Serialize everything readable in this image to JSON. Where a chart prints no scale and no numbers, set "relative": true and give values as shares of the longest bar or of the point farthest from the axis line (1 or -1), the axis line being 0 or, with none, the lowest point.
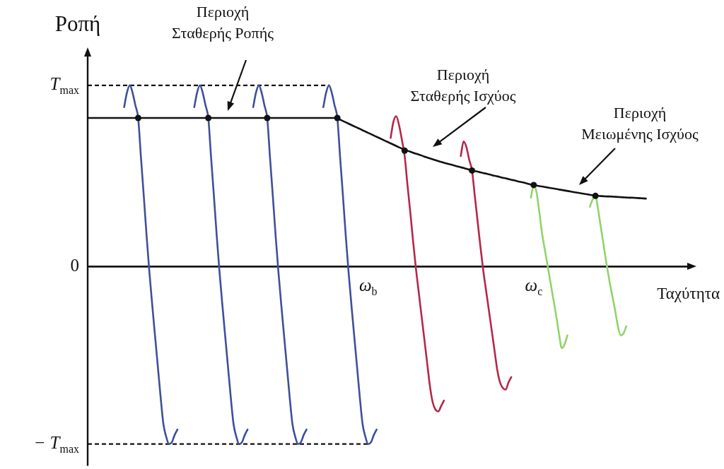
{
  "chart_data": {
    "type": "line",
    "relative": true,
    "xlabel": "Ταχύτητα",
    "ylabel": "Ροπή",
    "marker": "none",
    "categories": [
      null,
      null,
      null,
      null,
      null,
      null,
      null,
      null,
      null,
      null,
      null,
      null,
      null,
      null,
      null,
      null,
      null,
      null,
      null,
      null,
      null,
      null,
      null,
      null,
      null,
      null,
      null,
      null,
      null,
      null,
      null,
      null,
      null,
      null,
      null,
      null,
      null,
      null,
      null,
      null,
      null,
      null,
      null,
      null,
      null,
      null,
      null,
      null,
      null,
      null,
      null,
      null,
      null,
      null,
      null,
      null,
      null,
      null,
      null,
      null,
      null,
      null,
      null,
      null,
      null,
      null,
      null,
      null,
      null,
      null,
      null,
      null,
      null,
      null,
      null,
      null,
      null,
      null,
      null,
      null,
      null,
      null,
      null,
      null,
      null,
      null,
      null,
      null,
      null,
      null,
      null,
      null,
      null,
      null,
      null,
      null,
      null,
      null,
      null,
      null,
      "ω$_{b}$",
      null,
      null,
      null,
      null,
      null,
      null,
      null,
      null,
      null,
      null,
      null,
      null,
      null,
      null,
      null,
      null,
      null,
      null,
      null,
      null,
      null,
      null,
      null,
      null,
      null,
      null,
      null,
      null,
      null,
      null,
      null,
      null,
      null,
      null,
      null,
      null,
      null,
      null,
      null,
      null,
      null,
      null,
      null,
      null,
      null,
      null,
      null,
      null,
      null,
      null,
      null,
      null,
      null,
      null,
      null,
      null,
      null,
      null,
      "ω$_{c}$",
      null,
      null,
      null,
      null,
      null,
      null,
      null,
      null,
      null,
      null,
      null,
      null,
      null,
      null,
      null,
      null,
      null,
      null,
      null,
      null,
      null,
      null,
      null,
      null,
      null,
      null,
      null,
      null,
      null,
      null,
      null,
      null,
      null,
      null,
      null,
      null,
      null,
      null,
      null,
      null,
      null,
      null,
      null,
      null,
      null,
      null,
      null,
      null,
      null,
      null,
      null,
      null,
      null,
      null,
      null,
      null,
      null,
      null
    ],
    "ref_lines": [
      {
        "axis": "y",
        "value": 1,
        "label": "T$_{max}$",
        "line_style": "dashed"
      },
      {
        "axis": "y",
        "value": 0,
        "label": "0",
        "line_style": "solid"
      },
      {
        "axis": "y",
        "value": -0.98,
        "label": "− T$_{max}$",
        "line_style": "dashed"
      }
    ],
    "annotations": [
      "Περιοχή\nΣταθερής Ροπής",
      "Περιοχή\nΣταθερής Ισχύος",
      "Περιοχή\nΜειωμένης Ισχύος"
    ],
    "series": [
      {
        "color": "#3f4f9c",
        "values": [
          null,
          null,
          null,
          null,
          null,
          null,
          null,
          null,
          null,
          null,
          null,
          null,
          null,
          0.88,
          0.96,
          1,
          0.96,
          0.89,
          0.82,
          0.6,
          0.39,
          0.17,
          -0.03,
          -0.21,
          -0.38,
          -0.55,
          -0.72,
          -0.87,
          -0.94,
          -0.98,
          -0.97,
          -0.93,
          -0.9,
          null,
          null,
          null,
          null,
          null,
          null,
          null,
          null,
          null,
          null,
          null,
          null,
          null,
          null,
          null,
          null,
          null,
          null,
          null,
          null,
          null,
          null,
          null,
          null,
          null,
          null,
          null,
          null,
          null,
          null,
          null,
          null,
          null,
          null,
          null,
          null,
          null,
          null,
          null,
          null,
          null,
          null,
          null,
          null,
          null,
          null,
          null,
          null,
          null,
          null,
          null,
          null,
          null,
          null,
          null,
          null,
          null,
          null,
          null,
          null,
          null,
          null,
          null,
          null,
          null,
          null,
          null,
          null,
          null,
          null,
          null,
          null,
          null,
          null,
          null,
          null,
          null,
          null,
          null,
          null,
          null,
          null,
          null,
          null,
          null,
          null,
          null,
          null,
          null,
          null,
          null,
          null,
          null,
          null,
          null,
          null,
          null,
          null,
          null,
          null,
          null,
          null,
          null,
          null,
          null,
          null,
          null,
          null,
          null,
          null,
          null,
          null,
          null,
          null,
          null,
          null,
          null,
          null,
          null,
          null,
          null,
          null,
          null,
          null,
          null,
          null,
          null,
          null,
          null,
          null,
          null,
          null,
          null,
          null,
          null,
          null,
          null,
          null,
          null,
          null,
          null,
          null,
          null,
          null,
          null,
          null,
          null,
          null,
          null,
          null,
          null,
          null,
          null,
          null,
          null,
          null,
          null,
          null,
          null,
          null,
          null,
          null,
          null,
          null,
          null,
          null,
          null,
          null,
          null,
          null,
          null,
          null,
          null,
          null,
          null,
          null,
          null,
          null,
          null,
          null,
          null,
          null,
          null,
          null,
          null
        ]
      },
      {
        "color": "#3f4f9c",
        "values": [
          null,
          null,
          null,
          null,
          null,
          null,
          null,
          null,
          null,
          null,
          null,
          null,
          null,
          null,
          null,
          null,
          null,
          null,
          null,
          null,
          null,
          null,
          null,
          null,
          null,
          null,
          null,
          null,
          null,
          null,
          null,
          null,
          null,
          null,
          null,
          null,
          null,
          null,
          0.88,
          0.96,
          1,
          0.96,
          0.89,
          0.82,
          0.6,
          0.39,
          0.17,
          -0.03,
          -0.21,
          -0.38,
          -0.55,
          -0.72,
          -0.87,
          -0.94,
          -0.98,
          -0.97,
          -0.93,
          -0.9,
          null,
          null,
          null,
          null,
          null,
          null,
          null,
          null,
          null,
          null,
          null,
          null,
          null,
          null,
          null,
          null,
          null,
          null,
          null,
          null,
          null,
          null,
          null,
          null,
          null,
          null,
          null,
          null,
          null,
          null,
          null,
          null,
          null,
          null,
          null,
          null,
          null,
          null,
          null,
          null,
          null,
          null,
          null,
          null,
          null,
          null,
          null,
          null,
          null,
          null,
          null,
          null,
          null,
          null,
          null,
          null,
          null,
          null,
          null,
          null,
          null,
          null,
          null,
          null,
          null,
          null,
          null,
          null,
          null,
          null,
          null,
          null,
          null,
          null,
          null,
          null,
          null,
          null,
          null,
          null,
          null,
          null,
          null,
          null,
          null,
          null,
          null,
          null,
          null,
          null,
          null,
          null,
          null,
          null,
          null,
          null,
          null,
          null,
          null,
          null,
          null,
          null,
          null,
          null,
          null,
          null,
          null,
          null,
          null,
          null,
          null,
          null,
          null,
          null,
          null,
          null,
          null,
          null,
          null,
          null,
          null,
          null,
          null,
          null,
          null,
          null,
          null,
          null,
          null,
          null,
          null,
          null,
          null,
          null,
          null,
          null,
          null,
          null,
          null,
          null,
          null,
          null,
          null,
          null,
          null,
          null,
          null,
          null,
          null,
          null,
          null,
          null,
          null,
          null,
          null,
          null,
          null,
          null,
          null,
          null
        ]
      },
      {
        "color": "#3f4f9c",
        "values": [
          null,
          null,
          null,
          null,
          null,
          null,
          null,
          null,
          null,
          null,
          null,
          null,
          null,
          null,
          null,
          null,
          null,
          null,
          null,
          null,
          null,
          null,
          null,
          null,
          null,
          null,
          null,
          null,
          null,
          null,
          null,
          null,
          null,
          null,
          null,
          null,
          null,
          null,
          null,
          null,
          null,
          null,
          null,
          null,
          null,
          null,
          null,
          null,
          null,
          null,
          null,
          null,
          null,
          null,
          null,
          null,
          null,
          null,
          null,
          0.88,
          0.96,
          1,
          0.96,
          0.89,
          0.82,
          0.6,
          0.39,
          0.17,
          -0.03,
          -0.21,
          -0.38,
          -0.55,
          -0.72,
          -0.87,
          -0.94,
          -0.98,
          -0.97,
          -0.93,
          -0.9,
          null,
          null,
          null,
          null,
          null,
          null,
          null,
          null,
          null,
          null,
          null,
          null,
          null,
          null,
          null,
          null,
          null,
          null,
          null,
          null,
          null,
          null,
          null,
          null,
          null,
          null,
          null,
          null,
          null,
          null,
          null,
          null,
          null,
          null,
          null,
          null,
          null,
          null,
          null,
          null,
          null,
          null,
          null,
          null,
          null,
          null,
          null,
          null,
          null,
          null,
          null,
          null,
          null,
          null,
          null,
          null,
          null,
          null,
          null,
          null,
          null,
          null,
          null,
          null,
          null,
          null,
          null,
          null,
          null,
          null,
          null,
          null,
          null,
          null,
          null,
          null,
          null,
          null,
          null,
          null,
          null,
          null,
          null,
          null,
          null,
          null,
          null,
          null,
          null,
          null,
          null,
          null,
          null,
          null,
          null,
          null,
          null,
          null,
          null,
          null,
          null,
          null,
          null,
          null,
          null,
          null,
          null,
          null,
          null,
          null,
          null,
          null,
          null,
          null,
          null,
          null,
          null,
          null,
          null,
          null,
          null,
          null,
          null,
          null,
          null,
          null,
          null,
          null,
          null,
          null,
          null,
          null,
          null,
          null,
          null,
          null,
          null,
          null,
          null
        ]
      },
      {
        "color": "#3f4f9c",
        "values": [
          null,
          null,
          null,
          null,
          null,
          null,
          null,
          null,
          null,
          null,
          null,
          null,
          null,
          null,
          null,
          null,
          null,
          null,
          null,
          null,
          null,
          null,
          null,
          null,
          null,
          null,
          null,
          null,
          null,
          null,
          null,
          null,
          null,
          null,
          null,
          null,
          null,
          null,
          null,
          null,
          null,
          null,
          null,
          null,
          null,
          null,
          null,
          null,
          null,
          null,
          null,
          null,
          null,
          null,
          null,
          null,
          null,
          null,
          null,
          null,
          null,
          null,
          null,
          null,
          null,
          null,
          null,
          null,
          null,
          null,
          null,
          null,
          null,
          null,
          null,
          null,
          null,
          null,
          null,
          null,
          null,
          null,
          null,
          null,
          0.88,
          0.96,
          1,
          0.96,
          0.89,
          0.82,
          0.6,
          0.39,
          0.17,
          -0.03,
          -0.21,
          -0.38,
          -0.55,
          -0.72,
          -0.87,
          -0.94,
          -0.98,
          -0.97,
          -0.93,
          -0.9,
          null,
          null,
          null,
          null,
          null,
          null,
          null,
          null,
          null,
          null,
          null,
          null,
          null,
          null,
          null,
          null,
          null,
          null,
          null,
          null,
          null,
          null,
          null,
          null,
          null,
          null,
          null,
          null,
          null,
          null,
          null,
          null,
          null,
          null,
          null,
          null,
          null,
          null,
          null,
          null,
          null,
          null,
          null,
          null,
          null,
          null,
          null,
          null,
          null,
          null,
          null,
          null,
          null,
          null,
          null,
          null,
          null,
          null,
          null,
          null,
          null,
          null,
          null,
          null,
          null,
          null,
          null,
          null,
          null,
          null,
          null,
          null,
          null,
          null,
          null,
          null,
          null,
          null,
          null,
          null,
          null,
          null,
          null,
          null,
          null,
          null,
          null,
          null,
          null,
          null,
          null,
          null,
          null,
          null,
          null,
          null,
          null,
          null,
          null,
          null,
          null,
          null,
          null,
          null,
          null,
          null,
          null,
          null,
          null,
          null,
          null,
          null,
          null,
          null
        ]
      },
      {
        "color": "#b3284a",
        "values": [
          null,
          null,
          null,
          null,
          null,
          null,
          null,
          null,
          null,
          null,
          null,
          null,
          null,
          null,
          null,
          null,
          null,
          null,
          null,
          null,
          null,
          null,
          null,
          null,
          null,
          null,
          null,
          null,
          null,
          null,
          null,
          null,
          null,
          null,
          null,
          null,
          null,
          null,
          null,
          null,
          null,
          null,
          null,
          null,
          null,
          null,
          null,
          null,
          null,
          null,
          null,
          null,
          null,
          null,
          null,
          null,
          null,
          null,
          null,
          null,
          null,
          null,
          null,
          null,
          null,
          null,
          null,
          null,
          null,
          null,
          null,
          null,
          null,
          null,
          null,
          null,
          null,
          null,
          null,
          null,
          null,
          null,
          null,
          null,
          null,
          null,
          null,
          null,
          null,
          null,
          null,
          null,
          null,
          null,
          null,
          null,
          null,
          null,
          null,
          null,
          null,
          null,
          null,
          null,
          null,
          null,
          null,
          null,
          0.71,
          0.8,
          0.83,
          0.78,
          0.7,
          0.61,
          0.45,
          0.3,
          0.14,
          -0.01,
          -0.14,
          -0.27,
          -0.4,
          -0.53,
          -0.66,
          -0.75,
          -0.79,
          -0.8,
          -0.77,
          -0.74,
          null,
          null,
          null,
          null,
          null,
          null,
          null,
          null,
          null,
          null,
          null,
          null,
          null,
          null,
          null,
          null,
          null,
          null,
          null,
          null,
          null,
          null,
          null,
          null,
          null,
          null,
          null,
          null,
          null,
          null,
          null,
          null,
          null,
          null,
          null,
          null,
          null,
          null,
          null,
          null,
          null,
          null,
          null,
          null,
          null,
          null,
          null,
          null,
          null,
          null,
          null,
          null,
          null,
          null,
          null,
          null,
          null,
          null,
          null,
          null,
          null,
          null,
          null,
          null,
          null,
          null,
          null,
          null,
          null,
          null,
          null,
          null,
          null,
          null,
          null,
          null,
          null,
          null,
          null,
          null,
          null,
          null,
          null,
          null,
          null,
          null,
          null,
          null,
          null,
          null
        ]
      },
      {
        "color": "#b3284a",
        "values": [
          null,
          null,
          null,
          null,
          null,
          null,
          null,
          null,
          null,
          null,
          null,
          null,
          null,
          null,
          null,
          null,
          null,
          null,
          null,
          null,
          null,
          null,
          null,
          null,
          null,
          null,
          null,
          null,
          null,
          null,
          null,
          null,
          null,
          null,
          null,
          null,
          null,
          null,
          null,
          null,
          null,
          null,
          null,
          null,
          null,
          null,
          null,
          null,
          null,
          null,
          null,
          null,
          null,
          null,
          null,
          null,
          null,
          null,
          null,
          null,
          null,
          null,
          null,
          null,
          null,
          null,
          null,
          null,
          null,
          null,
          null,
          null,
          null,
          null,
          null,
          null,
          null,
          null,
          null,
          null,
          null,
          null,
          null,
          null,
          null,
          null,
          null,
          null,
          null,
          null,
          null,
          null,
          null,
          null,
          null,
          null,
          null,
          null,
          null,
          null,
          null,
          null,
          null,
          null,
          null,
          null,
          null,
          null,
          null,
          null,
          null,
          null,
          null,
          null,
          null,
          null,
          null,
          null,
          null,
          null,
          null,
          null,
          null,
          null,
          null,
          null,
          null,
          null,
          null,
          null,
          null,
          null,
          null,
          0.61,
          0.69,
          0.66,
          0.59,
          0.53,
          0.39,
          0.25,
          0.11,
          -0.02,
          -0.13,
          -0.24,
          -0.35,
          -0.46,
          -0.57,
          -0.64,
          -0.67,
          -0.68,
          -0.64,
          -0.61,
          null,
          null,
          null,
          null,
          null,
          null,
          null,
          null,
          null,
          null,
          null,
          null,
          null,
          null,
          null,
          null,
          null,
          null,
          null,
          null,
          null,
          null,
          null,
          null,
          null,
          null,
          null,
          null,
          null,
          null,
          null,
          null,
          null,
          null,
          null,
          null,
          null,
          null,
          null,
          null,
          null,
          null,
          null,
          null,
          null,
          null,
          null,
          null,
          null,
          null,
          null,
          null,
          null,
          null,
          null,
          null,
          null,
          null,
          null,
          null,
          null,
          null,
          null,
          null,
          null,
          null
        ]
      },
      {
        "color": "#8fd46a",
        "values": [
          null,
          null,
          null,
          null,
          null,
          null,
          null,
          null,
          null,
          null,
          null,
          null,
          null,
          null,
          null,
          null,
          null,
          null,
          null,
          null,
          null,
          null,
          null,
          null,
          null,
          null,
          null,
          null,
          null,
          null,
          null,
          null,
          null,
          null,
          null,
          null,
          null,
          null,
          null,
          null,
          null,
          null,
          null,
          null,
          null,
          null,
          null,
          null,
          null,
          null,
          null,
          null,
          null,
          null,
          null,
          null,
          null,
          null,
          null,
          null,
          null,
          null,
          null,
          null,
          null,
          null,
          null,
          null,
          null,
          null,
          null,
          null,
          null,
          null,
          null,
          null,
          null,
          null,
          null,
          null,
          null,
          null,
          null,
          null,
          null,
          null,
          null,
          null,
          null,
          null,
          null,
          null,
          null,
          null,
          null,
          null,
          null,
          null,
          null,
          null,
          null,
          null,
          null,
          null,
          null,
          null,
          null,
          null,
          null,
          null,
          null,
          null,
          null,
          null,
          null,
          null,
          null,
          null,
          null,
          null,
          null,
          null,
          null,
          null,
          null,
          null,
          null,
          null,
          null,
          null,
          null,
          null,
          null,
          null,
          null,
          null,
          null,
          null,
          null,
          null,
          null,
          null,
          null,
          null,
          null,
          null,
          null,
          null,
          null,
          null,
          null,
          null,
          null,
          null,
          null,
          null,
          null,
          null,
          0.38,
          0.45,
          0.41,
          0.3,
          0.18,
          0.09,
          0,
          -0.09,
          -0.18,
          -0.27,
          -0.37,
          -0.45,
          -0.43,
          -0.38,
          null,
          null,
          null,
          null,
          null,
          null,
          null,
          null,
          null,
          null,
          null,
          null,
          null,
          null,
          null,
          null,
          null,
          null,
          null,
          null,
          null,
          null,
          null,
          null,
          null,
          null,
          null,
          null,
          null,
          null,
          null,
          null,
          null,
          null,
          null,
          null,
          null,
          null,
          null,
          null,
          null,
          null,
          null,
          null,
          null,
          null
        ]
      },
      {
        "color": "#8fd46a",
        "values": [
          null,
          null,
          null,
          null,
          null,
          null,
          null,
          null,
          null,
          null,
          null,
          null,
          null,
          null,
          null,
          null,
          null,
          null,
          null,
          null,
          null,
          null,
          null,
          null,
          null,
          null,
          null,
          null,
          null,
          null,
          null,
          null,
          null,
          null,
          null,
          null,
          null,
          null,
          null,
          null,
          null,
          null,
          null,
          null,
          null,
          null,
          null,
          null,
          null,
          null,
          null,
          null,
          null,
          null,
          null,
          null,
          null,
          null,
          null,
          null,
          null,
          null,
          null,
          null,
          null,
          null,
          null,
          null,
          null,
          null,
          null,
          null,
          null,
          null,
          null,
          null,
          null,
          null,
          null,
          null,
          null,
          null,
          null,
          null,
          null,
          null,
          null,
          null,
          null,
          null,
          null,
          null,
          null,
          null,
          null,
          null,
          null,
          null,
          null,
          null,
          null,
          null,
          null,
          null,
          null,
          null,
          null,
          null,
          null,
          null,
          null,
          null,
          null,
          null,
          null,
          null,
          null,
          null,
          null,
          null,
          null,
          null,
          null,
          null,
          null,
          null,
          null,
          null,
          null,
          null,
          null,
          null,
          null,
          null,
          null,
          null,
          null,
          null,
          null,
          null,
          null,
          null,
          null,
          null,
          null,
          null,
          null,
          null,
          null,
          null,
          null,
          null,
          null,
          null,
          null,
          null,
          null,
          null,
          null,
          null,
          null,
          null,
          null,
          null,
          null,
          null,
          null,
          null,
          null,
          null,
          null,
          null,
          null,
          null,
          null,
          null,
          null,
          null,
          null,
          0.33,
          0.37,
          0.39,
          0.31,
          0.21,
          0.11,
          0.01,
          -0.08,
          -0.16,
          -0.24,
          -0.33,
          -0.38,
          -0.37,
          -0.33,
          null,
          null,
          null,
          null,
          null,
          null,
          null,
          null,
          null,
          null,
          null,
          null,
          null,
          null,
          null,
          null,
          null,
          null,
          null,
          null,
          null,
          null,
          null,
          null,
          null
        ]
      },
      {
        "color": "#111111",
        "values": [
          0.82,
          0.82,
          0.82,
          0.82,
          0.82,
          0.82,
          0.82,
          0.82,
          0.82,
          0.82,
          0.82,
          0.82,
          0.82,
          0.82,
          0.82,
          0.82,
          0.82,
          0.82,
          0.82,
          0.82,
          0.82,
          0.82,
          0.82,
          0.82,
          0.82,
          0.82,
          0.82,
          0.82,
          0.82,
          0.82,
          0.82,
          0.82,
          0.82,
          0.82,
          0.82,
          0.82,
          0.82,
          0.82,
          0.82,
          0.82,
          0.82,
          0.82,
          0.82,
          0.82,
          0.82,
          0.82,
          0.82,
          0.82,
          0.82,
          0.82,
          0.82,
          0.82,
          0.82,
          0.82,
          0.82,
          0.82,
          0.82,
          0.82,
          0.82,
          0.82,
          0.82,
          0.82,
          0.82,
          0.82,
          0.82,
          0.82,
          0.82,
          0.82,
          0.82,
          0.82,
          0.82,
          0.82,
          0.82,
          0.82,
          0.82,
          0.82,
          0.82,
          0.82,
          0.82,
          0.82,
          0.82,
          0.82,
          0.82,
          0.82,
          0.82,
          0.82,
          0.82,
          0.82,
          0.82,
          0.818,
          0.811,
          0.803,
          0.796,
          0.789,
          0.781,
          0.774,
          0.767,
          0.76,
          0.752,
          0.745,
          0.738,
          0.731,
          0.723,
          0.716,
          0.709,
          0.702,
          0.694,
          0.687,
          0.68,
          0.673,
          0.665,
          0.658,
          0.651,
          0.644,
          0.639,
          0.634,
          0.628,
          0.623,
          0.618,
          0.613,
          0.607,
          0.602,
          0.597,
          0.592,
          0.587,
          0.582,
          0.577,
          0.573,
          0.569,
          0.565,
          0.561,
          0.556,
          0.552,
          0.548,
          0.544,
          0.539,
          0.535,
          0.531,
          0.527,
          0.524,
          0.52,
          0.516,
          0.513,
          0.509,
          0.505,
          0.501,
          0.498,
          0.494,
          0.49,
          0.487,
          0.483,
          0.479,
          0.476,
          0.472,
          0.468,
          0.465,
          0.461,
          0.457,
          0.453,
          0.45,
          0.447,
          0.444,
          0.442,
          0.439,
          0.436,
          0.433,
          0.431,
          0.428,
          0.425,
          0.423,
          0.42,
          0.417,
          0.415,
          0.412,
          0.409,
          0.407,
          0.404,
          0.401,
          0.399,
          0.396,
          0.393,
          0.391,
          0.39,
          0.389,
          0.388,
          0.387,
          0.387,
          0.386,
          0.385,
          0.384,
          0.383,
          0.382,
          0.381,
          0.38,
          0.38,
          0.379,
          0.378,
          0.377,
          0.376,
          0.375,
          null,
          null,
          null,
          null,
          null,
          null,
          null,
          null,
          null,
          null,
          null,
          null,
          null,
          null,
          null,
          null,
          null,
          null
        ]
      },
      {
        "type": "scatter",
        "marker": "circle",
        "color": "#111111",
        "values": [
          null,
          null,
          null,
          null,
          null,
          null,
          null,
          null,
          null,
          null,
          null,
          null,
          null,
          null,
          null,
          null,
          null,
          null,
          0.82,
          null,
          null,
          null,
          null,
          null,
          null,
          null,
          null,
          null,
          null,
          null,
          null,
          null,
          null,
          null,
          null,
          null,
          null,
          null,
          null,
          null,
          null,
          null,
          null,
          0.82,
          null,
          null,
          null,
          null,
          null,
          null,
          null,
          null,
          null,
          null,
          null,
          null,
          null,
          null,
          null,
          null,
          null,
          null,
          null,
          null,
          0.82,
          null,
          null,
          null,
          null,
          null,
          null,
          null,
          null,
          null,
          null,
          null,
          null,
          null,
          null,
          null,
          null,
          null,
          null,
          null,
          null,
          null,
          null,
          null,
          null,
          0.82,
          null,
          null,
          null,
          null,
          null,
          null,
          null,
          null,
          null,
          null,
          null,
          null,
          null,
          null,
          null,
          null,
          null,
          null,
          null,
          null,
          null,
          null,
          null,
          0.64,
          null,
          null,
          null,
          null,
          null,
          null,
          null,
          null,
          null,
          null,
          null,
          null,
          null,
          null,
          null,
          null,
          null,
          null,
          null,
          null,
          null,
          null,
          null,
          0.53,
          null,
          null,
          null,
          null,
          null,
          null,
          null,
          null,
          null,
          null,
          null,
          null,
          null,
          null,
          null,
          null,
          null,
          null,
          null,
          null,
          null,
          0.45,
          null,
          null,
          null,
          null,
          null,
          null,
          null,
          null,
          null,
          null,
          null,
          null,
          null,
          null,
          null,
          null,
          null,
          null,
          null,
          null,
          null,
          0.39,
          null,
          null,
          null,
          null,
          null,
          null,
          null,
          null,
          null,
          null,
          null,
          null,
          null,
          null,
          null,
          null,
          null,
          null,
          null,
          null,
          null,
          null,
          null,
          null,
          null,
          null,
          null,
          null,
          null,
          null,
          null,
          null,
          null,
          null,
          null,
          null
        ]
      }
    ]
  }
}
